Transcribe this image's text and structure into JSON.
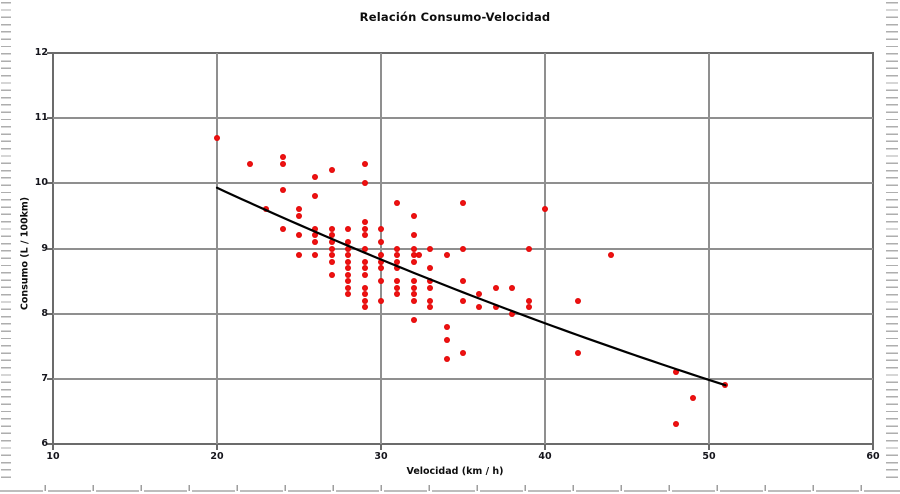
{
  "title": "Relación Consumo-Velocidad",
  "colors": {
    "point": "#d90000",
    "trend_line": "#000000",
    "gridline": "#8f8f8f",
    "axis_border": "#6b6b6b",
    "tick_text": "#15151c",
    "background": "#ffffff",
    "edge_hatch": "#aeaeae"
  },
  "chart_data": {
    "type": "scatter",
    "title": "Relación Consumo-Velocidad",
    "xlabel": "Velocidad (km / h)",
    "ylabel": "Consumo (L / 100km)",
    "xlim": [
      10,
      60
    ],
    "ylim": [
      6,
      12
    ],
    "xticks": [
      10,
      20,
      30,
      40,
      50,
      60
    ],
    "yticks": [
      6,
      7,
      8,
      9,
      10,
      11,
      12
    ],
    "grid": true,
    "legend": "none",
    "points": [
      [
        20,
        10.7
      ],
      [
        22,
        10.3
      ],
      [
        23,
        9.6
      ],
      [
        24,
        10.4
      ],
      [
        24,
        10.3
      ],
      [
        24,
        9.9
      ],
      [
        24,
        9.3
      ],
      [
        25,
        9.6
      ],
      [
        25,
        9.5
      ],
      [
        25,
        9.2
      ],
      [
        25,
        8.9
      ],
      [
        26,
        10.1
      ],
      [
        26,
        9.8
      ],
      [
        26,
        9.3
      ],
      [
        26,
        9.2
      ],
      [
        26,
        9.1
      ],
      [
        26,
        8.9
      ],
      [
        27,
        10.2
      ],
      [
        27,
        9.3
      ],
      [
        27,
        9.2
      ],
      [
        27,
        9.1
      ],
      [
        27,
        9.0
      ],
      [
        27,
        8.9
      ],
      [
        27,
        8.8
      ],
      [
        27,
        8.6
      ],
      [
        28,
        9.3
      ],
      [
        28,
        9.1
      ],
      [
        28,
        9.0
      ],
      [
        28,
        8.9
      ],
      [
        28,
        8.8
      ],
      [
        28,
        8.7
      ],
      [
        28,
        8.6
      ],
      [
        28,
        8.5
      ],
      [
        28,
        8.4
      ],
      [
        28,
        8.3
      ],
      [
        29,
        10.3
      ],
      [
        29,
        10.0
      ],
      [
        29,
        9.4
      ],
      [
        29,
        9.3
      ],
      [
        29,
        9.2
      ],
      [
        29,
        9.0
      ],
      [
        29,
        8.8
      ],
      [
        29,
        8.7
      ],
      [
        29,
        8.6
      ],
      [
        29,
        8.4
      ],
      [
        29,
        8.3
      ],
      [
        29,
        8.2
      ],
      [
        29,
        8.1
      ],
      [
        30,
        9.3
      ],
      [
        30,
        9.1
      ],
      [
        30,
        8.9
      ],
      [
        30,
        8.8
      ],
      [
        30,
        8.7
      ],
      [
        30,
        8.5
      ],
      [
        30,
        8.2
      ],
      [
        31,
        9.7
      ],
      [
        31,
        9.0
      ],
      [
        31,
        8.9
      ],
      [
        31,
        8.8
      ],
      [
        31,
        8.7
      ],
      [
        31,
        8.5
      ],
      [
        31,
        8.4
      ],
      [
        31,
        8.3
      ],
      [
        32,
        9.5
      ],
      [
        32,
        9.2
      ],
      [
        32,
        9.0
      ],
      [
        32,
        8.9
      ],
      [
        32.3,
        8.9
      ],
      [
        32,
        8.8
      ],
      [
        32,
        8.5
      ],
      [
        32,
        8.4
      ],
      [
        32,
        8.3
      ],
      [
        32,
        8.2
      ],
      [
        32,
        7.9
      ],
      [
        33,
        9.0
      ],
      [
        33,
        8.7
      ],
      [
        33,
        8.5
      ],
      [
        33,
        8.4
      ],
      [
        33,
        8.2
      ],
      [
        33,
        8.1
      ],
      [
        34,
        8.9
      ],
      [
        34,
        7.8
      ],
      [
        34,
        7.6
      ],
      [
        34,
        7.3
      ],
      [
        35,
        9.7
      ],
      [
        35,
        9.0
      ],
      [
        35,
        8.5
      ],
      [
        35,
        8.2
      ],
      [
        35,
        7.4
      ],
      [
        36,
        8.3
      ],
      [
        36,
        8.1
      ],
      [
        37,
        8.4
      ],
      [
        37,
        8.1
      ],
      [
        38,
        8.4
      ],
      [
        38,
        8.0
      ],
      [
        39,
        9.0
      ],
      [
        39,
        8.2
      ],
      [
        39,
        8.1
      ],
      [
        40,
        9.6
      ],
      [
        42,
        8.2
      ],
      [
        42,
        7.4
      ],
      [
        44,
        8.9
      ],
      [
        48,
        7.1
      ],
      [
        48,
        6.3
      ],
      [
        49,
        6.7
      ],
      [
        51,
        6.9
      ]
    ],
    "trendline": {
      "type": "exponential",
      "a": 12.56,
      "b": -0.01174,
      "x_start": 20,
      "x_end": 51.2,
      "description": "black exponential fit curve from (20, 9.93) to (51.2, 6.89)"
    }
  }
}
